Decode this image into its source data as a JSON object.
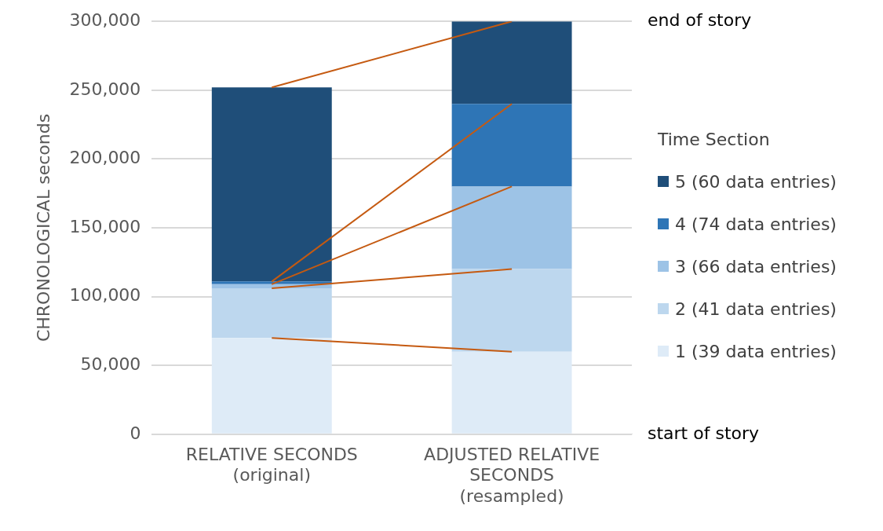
{
  "chart_data": {
    "type": "bar",
    "stacked": true,
    "ylabel": "CHRONOLOGICAL seconds",
    "legend_title": "Time Section",
    "legend": "right",
    "categories": [
      "RELATIVE SECONDS\n(original)",
      "ADJUSTED RELATIVE\nSECONDS\n(resampled)"
    ],
    "series": [
      {
        "name": "1 (39 data entries)",
        "color": "#deebf7",
        "values": [
          70000,
          60000
        ]
      },
      {
        "name": "2 (41 data entries)",
        "color": "#bdd7ee",
        "values": [
          36000,
          60000
        ]
      },
      {
        "name": "3 (66 data entries)",
        "color": "#9dc3e6",
        "values": [
          3000,
          60000
        ]
      },
      {
        "name": "4 (74 data entries)",
        "color": "#2e75b6",
        "values": [
          2000,
          60000
        ]
      },
      {
        "name": "5 (60 data entries)",
        "color": "#1f4e79",
        "values": [
          141000,
          60000
        ]
      },
      {
        "type": "line",
        "color": "#c55a11",
        "values": [
          70000,
          60000
        ]
      },
      {
        "type": "line",
        "color": "#c55a11",
        "values": [
          106000,
          120000
        ]
      },
      {
        "type": "line",
        "color": "#c55a11",
        "values": [
          109000,
          180000
        ]
      },
      {
        "type": "line",
        "color": "#c55a11",
        "values": [
          111000,
          240000
        ]
      },
      {
        "type": "line",
        "color": "#c55a11",
        "values": [
          252000,
          300000
        ]
      }
    ],
    "ylim": [
      0,
      300000
    ],
    "yticks": [
      {
        "value": 0,
        "label": "0"
      },
      {
        "value": 50000,
        "label": "50,000"
      },
      {
        "value": 100000,
        "label": "100,000"
      },
      {
        "value": 150000,
        "label": "150,000"
      },
      {
        "value": 200000,
        "label": "200,000"
      },
      {
        "value": 250000,
        "label": "250,000"
      },
      {
        "value": 300000,
        "label": "300,000"
      }
    ],
    "grid": "y",
    "annotations": [
      "end of story",
      "start of story"
    ]
  }
}
